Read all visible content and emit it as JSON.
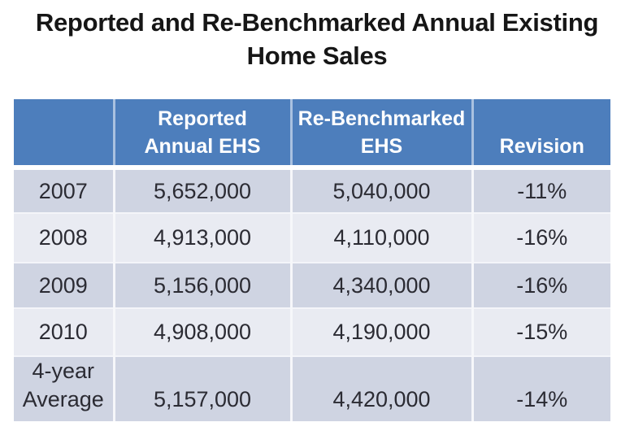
{
  "title": {
    "full": "Reported and Re-Benchmarked Annual Existing Home Sales",
    "lines": [
      "Reported and Re-Benchmarked Annual Existing",
      "Home Sales"
    ]
  },
  "table": {
    "header": {
      "year": "",
      "reported": {
        "line1": "Reported",
        "line2": "Annual EHS"
      },
      "rebenchmarked": {
        "line1": "Re-Benchmarked",
        "line2": "EHS"
      },
      "revision": "Revision"
    },
    "rows": [
      {
        "year": "2007",
        "reported": "5,652,000",
        "rebenchmarked": "5,040,000",
        "revision": "-11%"
      },
      {
        "year": "2008",
        "reported": "4,913,000",
        "rebenchmarked": "4,110,000",
        "revision": "-16%"
      },
      {
        "year": "2009",
        "reported": "5,156,000",
        "rebenchmarked": "4,340,000",
        "revision": "-16%"
      },
      {
        "year": "2010",
        "reported": "4,908,000",
        "rebenchmarked": "4,190,000",
        "revision": "-15%"
      },
      {
        "year_line1": "4-year",
        "year_line2": "Average",
        "reported": "5,157,000",
        "rebenchmarked": "4,420,000",
        "revision": "-14%"
      }
    ]
  },
  "colors": {
    "header_background": "#4d7ebc",
    "header_text": "#ffffff",
    "band_dark": "#cfd4e2",
    "band_light": "#e9ebf2",
    "body_text": "#2b2b33",
    "title_text": "#161616"
  },
  "chart_data": {
    "type": "table",
    "title": "Reported and Re-Benchmarked Annual Existing Home Sales",
    "columns": [
      "",
      "Reported Annual EHS",
      "Re-Benchmarked EHS",
      "Revision"
    ],
    "rows": [
      [
        "2007",
        "5,652,000",
        "5,040,000",
        "-11%"
      ],
      [
        "2008",
        "4,913,000",
        "4,110,000",
        "-16%"
      ],
      [
        "2009",
        "5,156,000",
        "4,340,000",
        "-16%"
      ],
      [
        "2010",
        "4,908,000",
        "4,190,000",
        "-15%"
      ],
      [
        "4-year Average",
        "5,157,000",
        "4,420,000",
        "-14%"
      ]
    ],
    "numeric_rows": [
      {
        "year": "2007",
        "reported": 5652000,
        "rebenchmarked": 5040000,
        "revision_pct": -11
      },
      {
        "year": "2008",
        "reported": 4913000,
        "rebenchmarked": 4110000,
        "revision_pct": -16
      },
      {
        "year": "2009",
        "reported": 5156000,
        "rebenchmarked": 4340000,
        "revision_pct": -16
      },
      {
        "year": "2010",
        "reported": 4908000,
        "rebenchmarked": 4190000,
        "revision_pct": -15
      },
      {
        "year": "4-year Average",
        "reported": 5157000,
        "rebenchmarked": 4420000,
        "revision_pct": -14
      }
    ]
  }
}
